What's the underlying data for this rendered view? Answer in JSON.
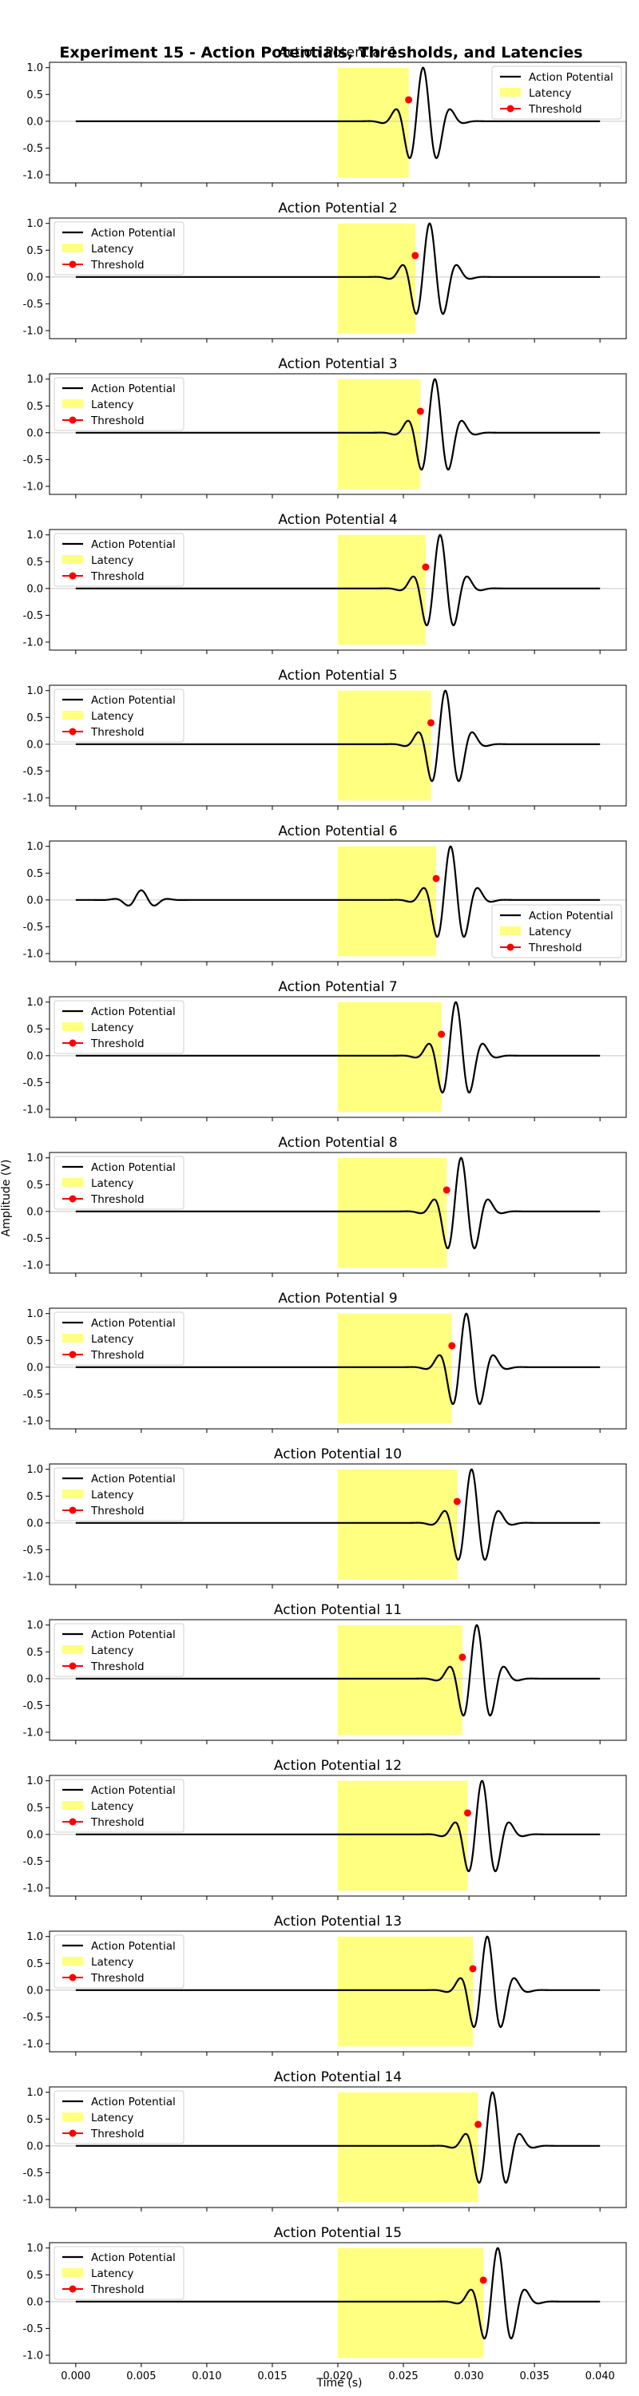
{
  "figure": {
    "title": "Experiment 15 - Action Potentials, Thresholds, and Latencies",
    "xlabel": "Time (s)",
    "ylabel": "Amplitude (V)"
  },
  "legend_labels": {
    "signal": "Action Potential",
    "latency": "Latency",
    "threshold": "Threshold"
  },
  "colors": {
    "signal": "#000000",
    "latency": "#ffff80",
    "threshold": "#ff0000",
    "zero_line": "#c8c8c8",
    "frame": "#000000"
  },
  "chart_data": {
    "type": "line",
    "layout": "15 vertically stacked subplots sharing the x axis",
    "xlim": [
      -0.002,
      0.042
    ],
    "ylim": [
      -1.15,
      1.1
    ],
    "x_ticks": [
      "0.000",
      "0.005",
      "0.010",
      "0.015",
      "0.020",
      "0.025",
      "0.030",
      "0.035",
      "0.040"
    ],
    "y_ticks": [
      "1.0",
      "0.5",
      "0.0",
      "-0.5",
      "-1.0"
    ],
    "x_tick_values": [
      0,
      0.005,
      0.01,
      0.015,
      0.02,
      0.025,
      0.03,
      0.035,
      0.04
    ],
    "y_tick_values": [
      1,
      0.5,
      0,
      -0.5,
      -1
    ],
    "zero_line": true,
    "grid": false,
    "signal_x_range": [
      0,
      0.04
    ],
    "latency_start": 0.02,
    "threshold_level": 0.4,
    "subplots": [
      {
        "title": "Action Potential 1",
        "peak_time": 0.0265,
        "latency_end": 0.0254,
        "threshold": [
          0.0254,
          0.4
        ],
        "legend": "top-right"
      },
      {
        "title": "Action Potential 2",
        "peak_time": 0.027,
        "latency_end": 0.0259,
        "threshold": [
          0.0259,
          0.4
        ],
        "legend": "top-left"
      },
      {
        "title": "Action Potential 3",
        "peak_time": 0.0274,
        "latency_end": 0.0263,
        "threshold": [
          0.0263,
          0.4
        ],
        "legend": "top-left"
      },
      {
        "title": "Action Potential 4",
        "peak_time": 0.0278,
        "latency_end": 0.0267,
        "threshold": [
          0.0267,
          0.4
        ],
        "legend": "top-left"
      },
      {
        "title": "Action Potential 5",
        "peak_time": 0.0282,
        "latency_end": 0.0271,
        "threshold": [
          0.0271,
          0.4
        ],
        "legend": "top-left"
      },
      {
        "title": "Action Potential 6",
        "peak_time": 0.0286,
        "latency_end": 0.0275,
        "threshold": [
          0.0275,
          0.4
        ],
        "legend": "bottom-right",
        "extra_bump": 0.005
      },
      {
        "title": "Action Potential 7",
        "peak_time": 0.029,
        "latency_end": 0.0279,
        "threshold": [
          0.0279,
          0.4
        ],
        "legend": "top-left"
      },
      {
        "title": "Action Potential 8",
        "peak_time": 0.0294,
        "latency_end": 0.0283,
        "threshold": [
          0.0283,
          0.4
        ],
        "legend": "top-left"
      },
      {
        "title": "Action Potential 9",
        "peak_time": 0.0298,
        "latency_end": 0.0287,
        "threshold": [
          0.0287,
          0.4
        ],
        "legend": "top-left"
      },
      {
        "title": "Action Potential 10",
        "peak_time": 0.0302,
        "latency_end": 0.0291,
        "threshold": [
          0.0291,
          0.4
        ],
        "legend": "top-left"
      },
      {
        "title": "Action Potential 11",
        "peak_time": 0.0306,
        "latency_end": 0.0295,
        "threshold": [
          0.0295,
          0.4
        ],
        "legend": "top-left"
      },
      {
        "title": "Action Potential 12",
        "peak_time": 0.031,
        "latency_end": 0.0299,
        "threshold": [
          0.0299,
          0.4
        ],
        "legend": "top-left"
      },
      {
        "title": "Action Potential 13",
        "peak_time": 0.0314,
        "latency_end": 0.0303,
        "threshold": [
          0.0303,
          0.4
        ],
        "legend": "top-left"
      },
      {
        "title": "Action Potential 14",
        "peak_time": 0.0318,
        "latency_end": 0.0307,
        "threshold": [
          0.0307,
          0.4
        ],
        "legend": "top-left"
      },
      {
        "title": "Action Potential 15",
        "peak_time": 0.0322,
        "latency_end": 0.0311,
        "threshold": [
          0.0311,
          0.4
        ],
        "legend": "top-left"
      }
    ]
  }
}
